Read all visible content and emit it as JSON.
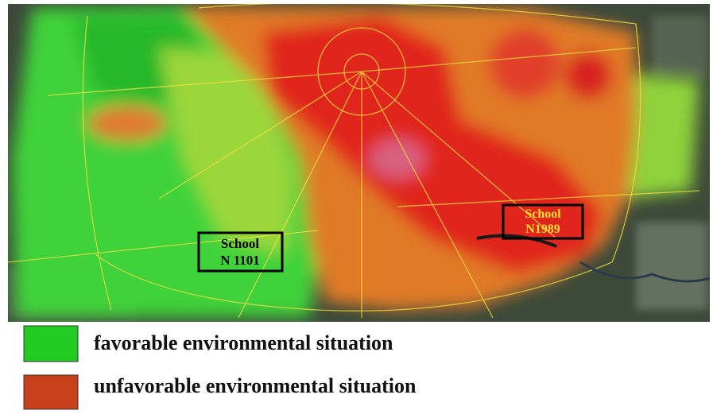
{
  "map": {
    "labels": [
      {
        "lines": [
          "School",
          "N 1101"
        ]
      },
      {
        "lines": [
          "School",
          "N1989"
        ]
      }
    ]
  },
  "legend": [
    {
      "label": "favorable environmental situation",
      "color": "#22cc22"
    },
    {
      "label": "unfavorable environmental situation",
      "color": "#c8401a"
    }
  ]
}
